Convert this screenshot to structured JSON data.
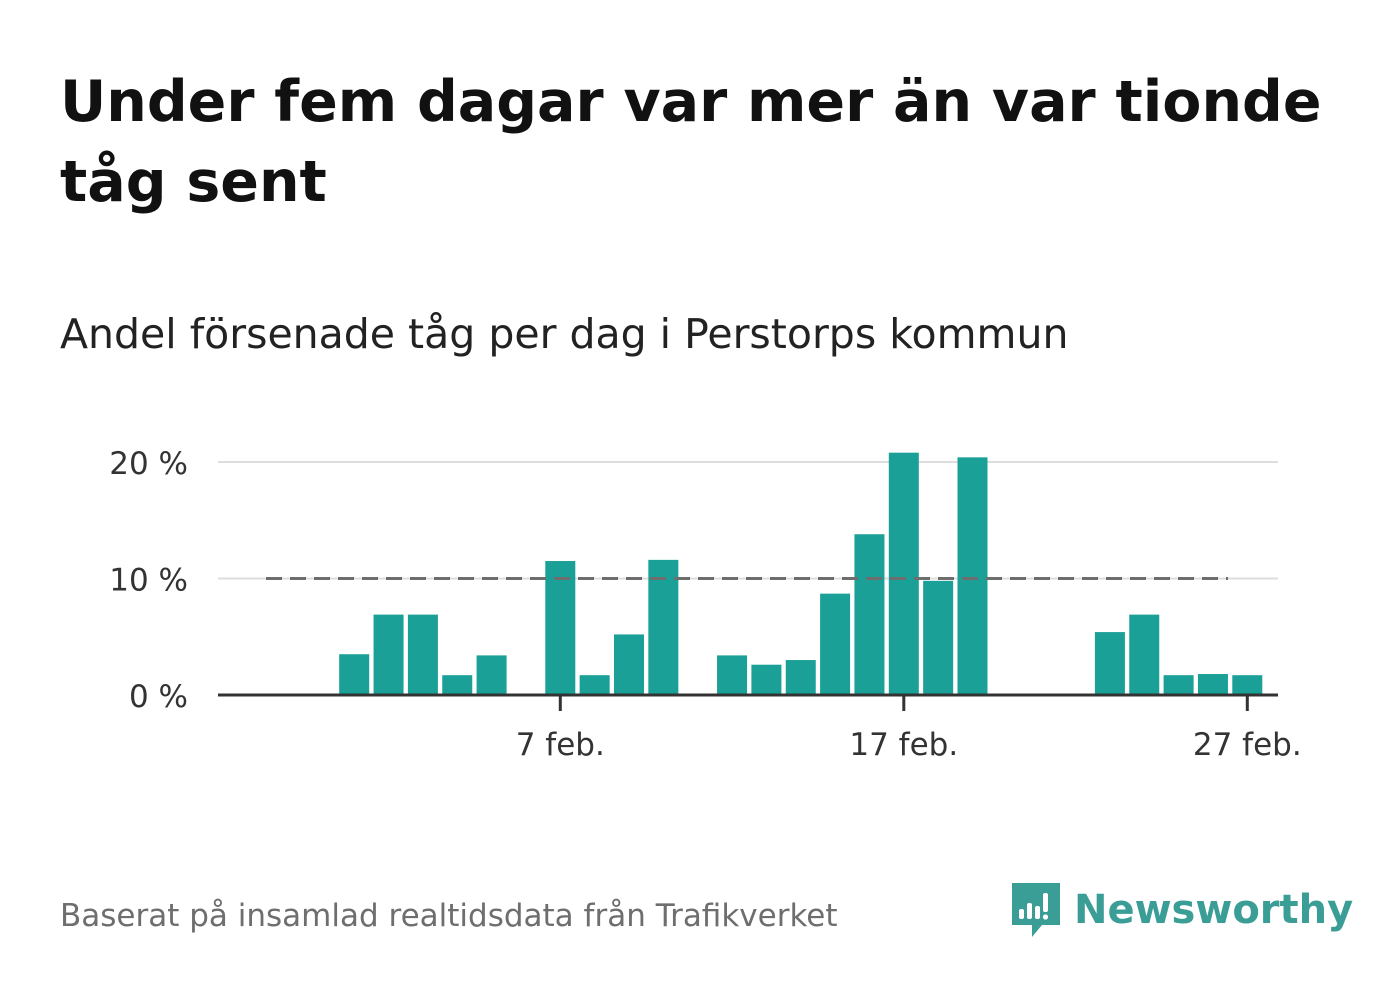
{
  "title": "Under fem dagar var mer än var tionde tåg sent",
  "subtitle": "Andel försenade tåg per dag i Perstorps kommun",
  "footer": "Baserat på insamlad realtidsdata från Trafikverket",
  "brand": {
    "name": "Newsworthy",
    "icon": "newsworthy-logo-icon",
    "color": "#3a9e96"
  },
  "chart_data": {
    "type": "bar",
    "title": "Andel försenade tåg per dag i Perstorps kommun",
    "xlabel": "",
    "ylabel": "",
    "x_start": "2024-01-30",
    "categories": [
      "30 jan.",
      "31 jan.",
      "1 feb.",
      "2 feb.",
      "3 feb.",
      "4 feb.",
      "5 feb.",
      "6 feb.",
      "7 feb.",
      "8 feb.",
      "9 feb.",
      "10 feb.",
      "11 feb.",
      "12 feb.",
      "13 feb.",
      "14 feb.",
      "15 feb.",
      "16 feb.",
      "17 feb.",
      "18 feb.",
      "19 feb.",
      "20 feb.",
      "21 feb.",
      "22 feb.",
      "23 feb.",
      "24 feb.",
      "25 feb.",
      "26 feb.",
      "27 feb.",
      "28 feb."
    ],
    "values": [
      null,
      null,
      3.5,
      6.9,
      6.9,
      1.7,
      3.4,
      null,
      11.5,
      1.7,
      5.2,
      11.6,
      null,
      3.4,
      2.6,
      3.0,
      8.7,
      13.8,
      20.8,
      9.8,
      20.4,
      null,
      null,
      null,
      5.4,
      6.9,
      1.7,
      1.8,
      1.7,
      null
    ],
    "ylim": [
      0,
      20
    ],
    "yticks": [
      0,
      10,
      20
    ],
    "ytick_labels": [
      "0 %",
      "10 %",
      "20 %"
    ],
    "xtick_labels": [
      "7 feb.",
      "17 feb.",
      "27 feb."
    ],
    "reference_line": {
      "value": 10,
      "style": "dashed"
    },
    "bar_color": "#1aa096",
    "grid": true
  }
}
